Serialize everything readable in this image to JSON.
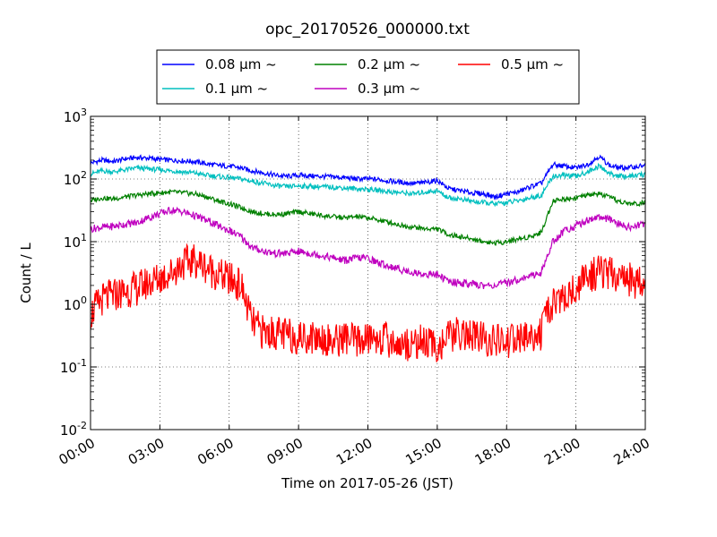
{
  "chart_data": {
    "type": "line",
    "title": "opc_20170526_000000.txt",
    "xlabel": "Time on 2017-05-26 (JST)",
    "ylabel": "Count / L",
    "yscale": "log",
    "xlim": [
      "00:00",
      "24:00"
    ],
    "ylim": [
      0.01,
      1000
    ],
    "x_ticks": [
      "00:00",
      "03:00",
      "06:00",
      "09:00",
      "12:00",
      "15:00",
      "18:00",
      "21:00",
      "24:00"
    ],
    "y_ticks": [
      {
        "base": "10",
        "exp": "-2"
      },
      {
        "base": "10",
        "exp": "-1"
      },
      {
        "base": "10",
        "exp": "0"
      },
      {
        "base": "10",
        "exp": "1"
      },
      {
        "base": "10",
        "exp": "2"
      },
      {
        "base": "10",
        "exp": "3"
      }
    ],
    "grid": true,
    "legend_position": "top-center",
    "x_hours": [
      0,
      0.5,
      1,
      1.5,
      2,
      2.5,
      3,
      3.5,
      4,
      4.5,
      5,
      5.5,
      6,
      6.5,
      7,
      7.5,
      8,
      8.5,
      9,
      9.5,
      10,
      10.5,
      11,
      11.5,
      12,
      12.5,
      13,
      13.5,
      14,
      14.5,
      15,
      15.5,
      16,
      16.5,
      17,
      17.5,
      18,
      18.5,
      19,
      19.5,
      20,
      20.5,
      21,
      21.5,
      22,
      22.5,
      23,
      23.5,
      24
    ],
    "series": [
      {
        "name": "0.08 μm ~",
        "color": "#0000ff",
        "values": [
          180,
          200,
          190,
          210,
          220,
          215,
          205,
          200,
          195,
          190,
          175,
          165,
          160,
          150,
          135,
          125,
          115,
          110,
          115,
          112,
          110,
          108,
          105,
          100,
          100,
          98,
          92,
          88,
          85,
          88,
          95,
          70,
          65,
          60,
          58,
          52,
          58,
          62,
          75,
          85,
          170,
          160,
          150,
          170,
          230,
          160,
          150,
          155,
          165
        ]
      },
      {
        "name": "0.1 μm ~",
        "color": "#00bfbf",
        "values": [
          120,
          135,
          130,
          140,
          150,
          145,
          140,
          135,
          130,
          125,
          115,
          110,
          105,
          100,
          92,
          85,
          78,
          75,
          78,
          76,
          75,
          74,
          72,
          70,
          68,
          66,
          62,
          60,
          58,
          62,
          65,
          50,
          48,
          44,
          42,
          40,
          42,
          45,
          50,
          55,
          110,
          115,
          110,
          130,
          160,
          120,
          110,
          112,
          118
        ]
      },
      {
        "name": "0.2 μm ~",
        "color": "#008000",
        "values": [
          45,
          50,
          48,
          52,
          55,
          58,
          60,
          62,
          60,
          58,
          52,
          45,
          40,
          35,
          30,
          28,
          27,
          28,
          30,
          28,
          26,
          25,
          24,
          25,
          24,
          22,
          20,
          18,
          17,
          16,
          16,
          13,
          12,
          11,
          10,
          9.5,
          10,
          11,
          12,
          14,
          45,
          48,
          50,
          55,
          58,
          50,
          42,
          40,
          42
        ]
      },
      {
        "name": "0.3 μm ~",
        "color": "#bf00bf",
        "values": [
          16,
          17,
          17.5,
          19,
          20,
          24,
          28,
          32,
          30,
          26,
          22,
          18,
          15,
          12,
          8,
          7,
          6.5,
          6.5,
          7,
          6.5,
          6,
          5.5,
          5,
          5.5,
          5.5,
          4.5,
          4,
          3.5,
          3.2,
          3,
          3,
          2.3,
          2.2,
          2.1,
          2,
          2,
          2.2,
          2.5,
          2.8,
          3.2,
          10,
          15,
          18,
          22,
          25,
          22,
          18,
          17,
          20
        ]
      },
      {
        "name": "0.5 μm ~",
        "color": "#ff0000",
        "values": [
          0.7,
          1.2,
          1.4,
          1.6,
          1.8,
          2.2,
          2.6,
          3.2,
          4.5,
          5,
          4,
          3,
          2.5,
          2,
          0.5,
          0.35,
          0.35,
          0.32,
          0.3,
          0.3,
          0.3,
          0.25,
          0.3,
          0.25,
          0.28,
          0.3,
          0.25,
          0.22,
          0.25,
          0.25,
          0.2,
          0.3,
          0.35,
          0.3,
          0.28,
          0.25,
          0.25,
          0.28,
          0.3,
          0.35,
          1.1,
          1.2,
          1.8,
          2.8,
          3.2,
          3,
          2.8,
          2.3,
          2.5
        ]
      }
    ]
  }
}
